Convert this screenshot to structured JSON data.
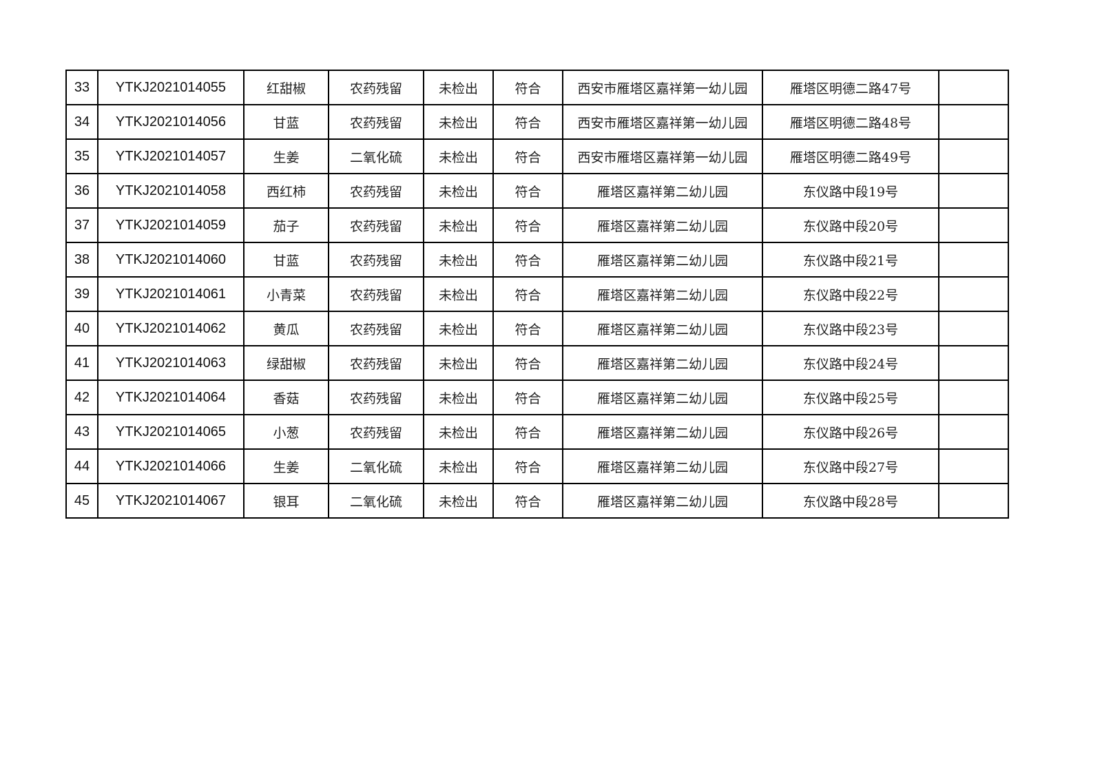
{
  "table": {
    "rows": [
      {
        "no": "33",
        "code": "YTKJ2021014055",
        "sample": "红甜椒",
        "item": "农药残留",
        "result": "未检出",
        "verdict": "符合",
        "unit": "西安市雁塔区嘉祥第一幼儿园",
        "address": "雁塔区明德二路47号",
        "remark": ""
      },
      {
        "no": "34",
        "code": "YTKJ2021014056",
        "sample": "甘蓝",
        "item": "农药残留",
        "result": "未检出",
        "verdict": "符合",
        "unit": "西安市雁塔区嘉祥第一幼儿园",
        "address": "雁塔区明德二路48号",
        "remark": ""
      },
      {
        "no": "35",
        "code": "YTKJ2021014057",
        "sample": "生姜",
        "item": "二氧化硫",
        "result": "未检出",
        "verdict": "符合",
        "unit": "西安市雁塔区嘉祥第一幼儿园",
        "address": "雁塔区明德二路49号",
        "remark": ""
      },
      {
        "no": "36",
        "code": "YTKJ2021014058",
        "sample": "西红柿",
        "item": "农药残留",
        "result": "未检出",
        "verdict": "符合",
        "unit": "雁塔区嘉祥第二幼儿园",
        "address": "东仪路中段19号",
        "remark": ""
      },
      {
        "no": "37",
        "code": "YTKJ2021014059",
        "sample": "茄子",
        "item": "农药残留",
        "result": "未检出",
        "verdict": "符合",
        "unit": "雁塔区嘉祥第二幼儿园",
        "address": "东仪路中段20号",
        "remark": ""
      },
      {
        "no": "38",
        "code": "YTKJ2021014060",
        "sample": "甘蓝",
        "item": "农药残留",
        "result": "未检出",
        "verdict": "符合",
        "unit": "雁塔区嘉祥第二幼儿园",
        "address": "东仪路中段21号",
        "remark": ""
      },
      {
        "no": "39",
        "code": "YTKJ2021014061",
        "sample": "小青菜",
        "item": "农药残留",
        "result": "未检出",
        "verdict": "符合",
        "unit": "雁塔区嘉祥第二幼儿园",
        "address": "东仪路中段22号",
        "remark": ""
      },
      {
        "no": "40",
        "code": "YTKJ2021014062",
        "sample": "黄瓜",
        "item": "农药残留",
        "result": "未检出",
        "verdict": "符合",
        "unit": "雁塔区嘉祥第二幼儿园",
        "address": "东仪路中段23号",
        "remark": ""
      },
      {
        "no": "41",
        "code": "YTKJ2021014063",
        "sample": "绿甜椒",
        "item": "农药残留",
        "result": "未检出",
        "verdict": "符合",
        "unit": "雁塔区嘉祥第二幼儿园",
        "address": "东仪路中段24号",
        "remark": ""
      },
      {
        "no": "42",
        "code": "YTKJ2021014064",
        "sample": "香菇",
        "item": "农药残留",
        "result": "未检出",
        "verdict": "符合",
        "unit": "雁塔区嘉祥第二幼儿园",
        "address": "东仪路中段25号",
        "remark": ""
      },
      {
        "no": "43",
        "code": "YTKJ2021014065",
        "sample": "小葱",
        "item": "农药残留",
        "result": "未检出",
        "verdict": "符合",
        "unit": "雁塔区嘉祥第二幼儿园",
        "address": "东仪路中段26号",
        "remark": ""
      },
      {
        "no": "44",
        "code": "YTKJ2021014066",
        "sample": "生姜",
        "item": "二氧化硫",
        "result": "未检出",
        "verdict": "符合",
        "unit": "雁塔区嘉祥第二幼儿园",
        "address": "东仪路中段27号",
        "remark": ""
      },
      {
        "no": "45",
        "code": "YTKJ2021014067",
        "sample": "银耳",
        "item": "二氧化硫",
        "result": "未检出",
        "verdict": "符合",
        "unit": "雁塔区嘉祥第二幼儿园",
        "address": "东仪路中段28号",
        "remark": ""
      }
    ]
  }
}
